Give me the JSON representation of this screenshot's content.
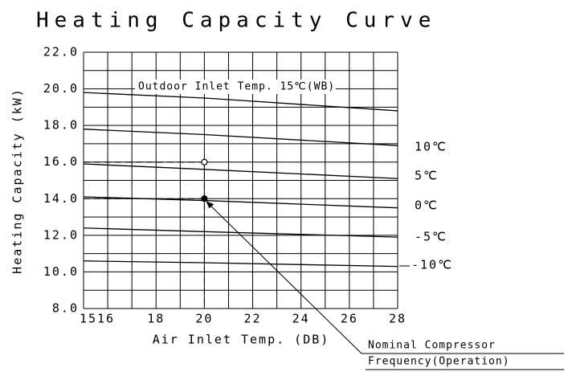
{
  "chart_data": {
    "type": "line",
    "title": "Heating Capacity Curve",
    "x_label": "Air Inlet Temp. (DB)",
    "y_label": "Heating Capacity (kW)",
    "xlim": [
      15,
      28
    ],
    "ylim": [
      8,
      22
    ],
    "xticks": [
      15,
      16,
      18,
      20,
      22,
      24,
      26,
      28
    ],
    "yticks": [
      {
        "value": 8,
        "label": "8.0"
      },
      {
        "value": 10,
        "label": "10.0"
      },
      {
        "value": 12,
        "label": "12.0"
      },
      {
        "value": 14,
        "label": "14.0"
      },
      {
        "value": 16,
        "label": "16.0"
      },
      {
        "value": 18,
        "label": "18.0"
      },
      {
        "value": 20,
        "label": "20.0"
      },
      {
        "value": 22,
        "label": "22.0"
      }
    ],
    "xgrid": [
      15,
      16,
      17,
      18,
      19,
      20,
      21,
      22,
      23,
      24,
      25,
      26,
      27,
      28
    ],
    "ygrid": [
      8,
      9,
      10,
      11,
      12,
      13,
      14,
      15,
      16,
      17,
      18,
      19,
      20,
      21,
      22
    ],
    "grid": true,
    "x": [
      15,
      20,
      28
    ],
    "series": [
      {
        "name": "Outdoor Inlet Temp. 15℃(WB)",
        "color": "#000000",
        "values": [
          19.8,
          19.5,
          18.8
        ]
      },
      {
        "name": "10℃",
        "color": "#000000",
        "values": [
          17.8,
          17.5,
          16.9
        ]
      },
      {
        "name": "5℃",
        "color": "#000000",
        "values": [
          15.9,
          15.6,
          15.1
        ]
      },
      {
        "name": "0℃",
        "color": "#000000",
        "values": [
          14.1,
          13.9,
          13.5
        ]
      },
      {
        "name": "-5℃",
        "color": "#000000",
        "values": [
          12.4,
          12.2,
          11.9
        ]
      },
      {
        "name": "-10℃",
        "color": "#000000",
        "values": [
          10.6,
          10.5,
          10.3
        ]
      }
    ],
    "points": [
      {
        "x": 20,
        "y": 16,
        "filled": false
      },
      {
        "x": 20,
        "y": 14,
        "filled": true
      }
    ],
    "annotation": [
      "Nominal Compressor",
      "Frequency(Operation)"
    ]
  }
}
